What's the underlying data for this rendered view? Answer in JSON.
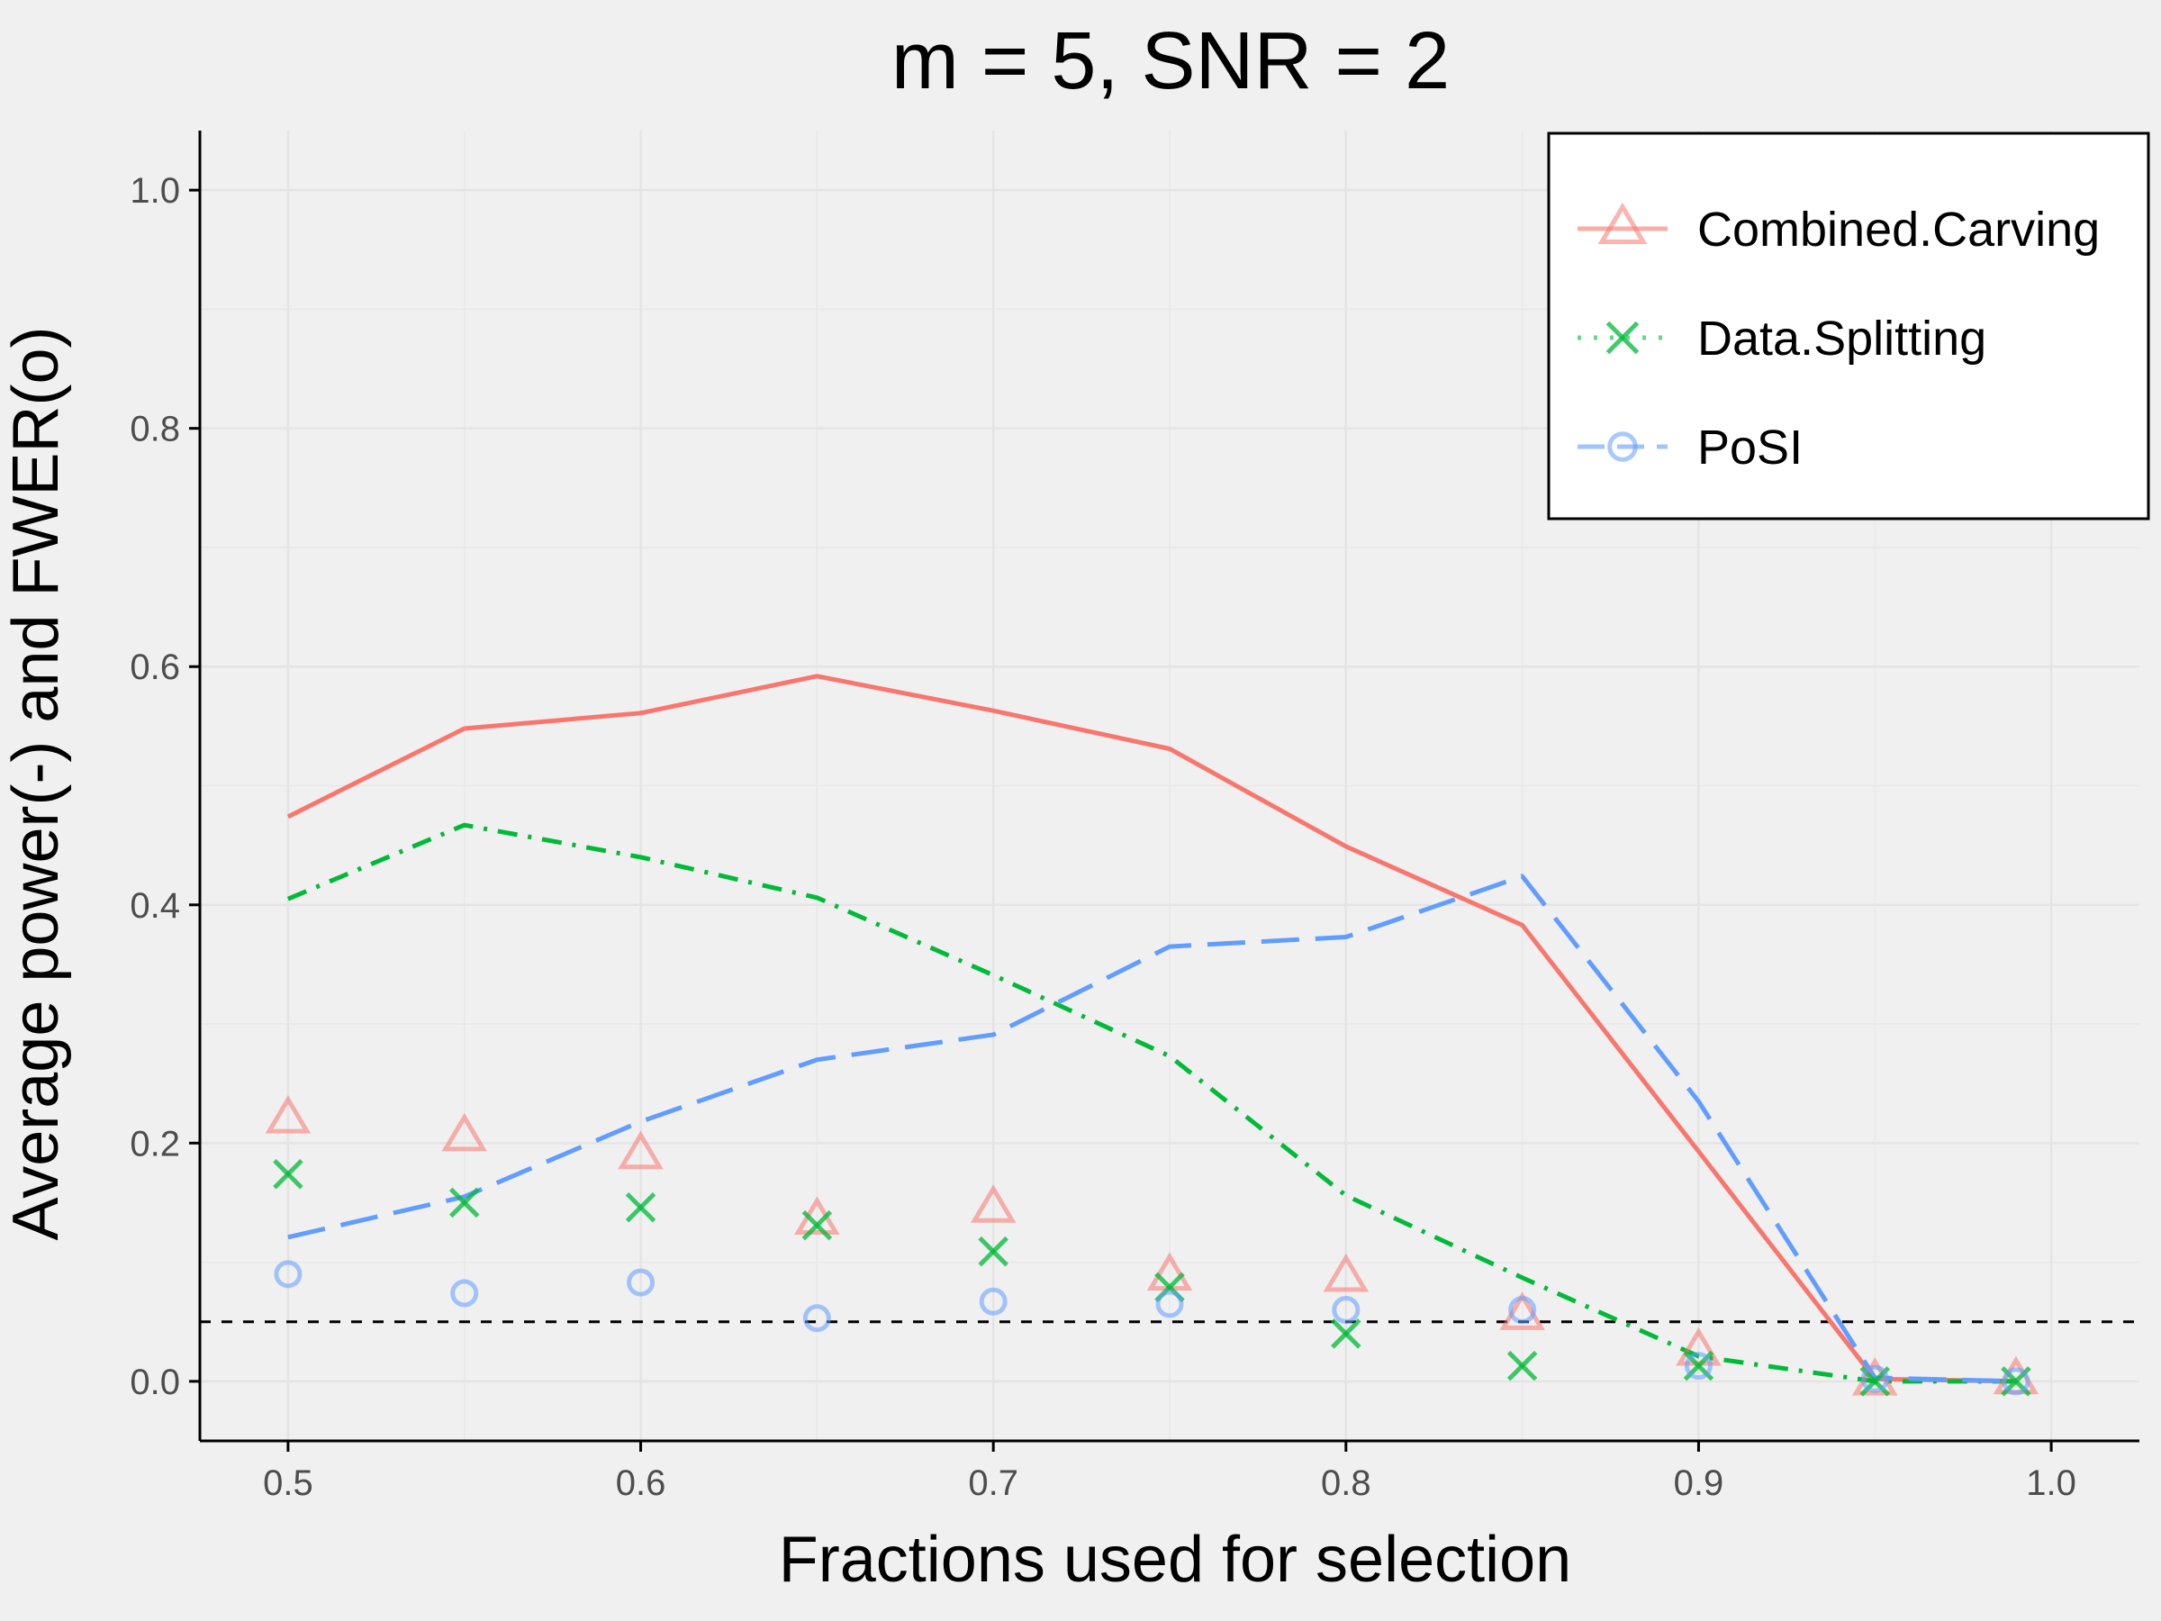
{
  "chart_data": {
    "type": "line",
    "title": "m = 5, SNR = 2",
    "xlabel": "Fractions used for selection",
    "ylabel": "Average power(-) and FWER(o)",
    "xlim": [
      0.475,
      1.025
    ],
    "ylim": [
      -0.05,
      1.05
    ],
    "xticks": [
      0.5,
      0.6,
      0.7,
      0.8,
      0.9,
      1.0
    ],
    "xtick_labels": [
      "0.5",
      "0.6",
      "0.7",
      "0.8",
      "0.9",
      "1.0"
    ],
    "yticks": [
      0.0,
      0.2,
      0.4,
      0.6,
      0.8,
      1.0
    ],
    "ytick_labels": [
      "0.0",
      "0.2",
      "0.4",
      "0.6",
      "0.8",
      "1.0"
    ],
    "grid": true,
    "legend_position": "top-right",
    "x": [
      0.5,
      0.55,
      0.6,
      0.65,
      0.7,
      0.75,
      0.8,
      0.85,
      0.9,
      0.95,
      0.99
    ],
    "reference_line": {
      "y": 0.05,
      "style": "dashed",
      "color": "#000000"
    },
    "series": [
      {
        "name": "Combined.Carving",
        "color": "#f8766d",
        "line_style": "solid",
        "marker": "triangle",
        "power": [
          0.474,
          0.548,
          0.561,
          0.592,
          0.563,
          0.531,
          0.449,
          0.383,
          0.193,
          0.002,
          0.0
        ],
        "fwer": [
          0.22,
          0.205,
          0.19,
          0.135,
          0.145,
          0.088,
          0.087,
          0.055,
          0.025,
          0.0,
          0.001
        ]
      },
      {
        "name": "Data.Splitting",
        "color": "#00ba38",
        "line_style": "dotdash",
        "marker": "cross",
        "power": [
          0.405,
          0.467,
          0.44,
          0.406,
          0.341,
          0.273,
          0.156,
          0.087,
          0.021,
          0.0,
          0.0
        ],
        "fwer": [
          0.174,
          0.15,
          0.146,
          0.131,
          0.109,
          0.079,
          0.04,
          0.013,
          0.013,
          0.0,
          0.0
        ]
      },
      {
        "name": "PoSI",
        "color": "#619cff",
        "line_style": "longdash",
        "marker": "circle",
        "power": [
          0.121,
          0.155,
          0.218,
          0.27,
          0.291,
          0.365,
          0.373,
          0.424,
          0.235,
          0.003,
          0.0
        ],
        "fwer": [
          0.09,
          0.074,
          0.083,
          0.053,
          0.067,
          0.065,
          0.06,
          0.06,
          0.013,
          0.002,
          0.0
        ]
      }
    ]
  }
}
